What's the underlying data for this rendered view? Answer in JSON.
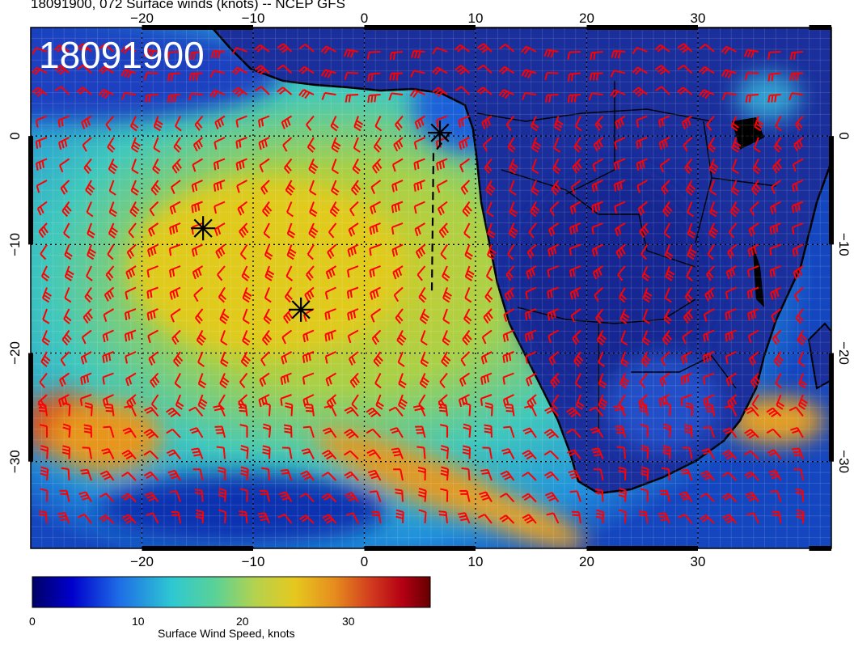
{
  "title": "18091900, 072 Surface winds (knots) -- NCEP GFS",
  "overlay_label": "18091900",
  "lon_ticks": [
    "−20",
    "−10",
    "0",
    "10",
    "20",
    "30"
  ],
  "lat_ticks": [
    "0",
    "−10",
    "−20",
    "−30"
  ],
  "colorbar": {
    "label": "Surface Wind Speed, knots",
    "ticks": [
      "0",
      "10",
      "20",
      "30"
    ],
    "range": [
      0,
      38
    ],
    "colors": [
      "#000066",
      "#0000cc",
      "#1e6ee6",
      "#2ec8d2",
      "#5ad296",
      "#b4d24e",
      "#e6c81e",
      "#e68c1e",
      "#d23c1e",
      "#b40014",
      "#640000"
    ]
  },
  "map": {
    "lon_range": [
      -30,
      42
    ],
    "lat_range": [
      -38,
      10
    ],
    "barb_color": "#ff0000",
    "markers": [
      {
        "symbol": "asterisk",
        "lon": -14.5,
        "lat": -8.5
      },
      {
        "symbol": "asterisk",
        "lon": -5.7,
        "lat": -16.0
      },
      {
        "symbol": "asterisk",
        "lon": 6.8,
        "lat": 0.3
      }
    ]
  }
}
